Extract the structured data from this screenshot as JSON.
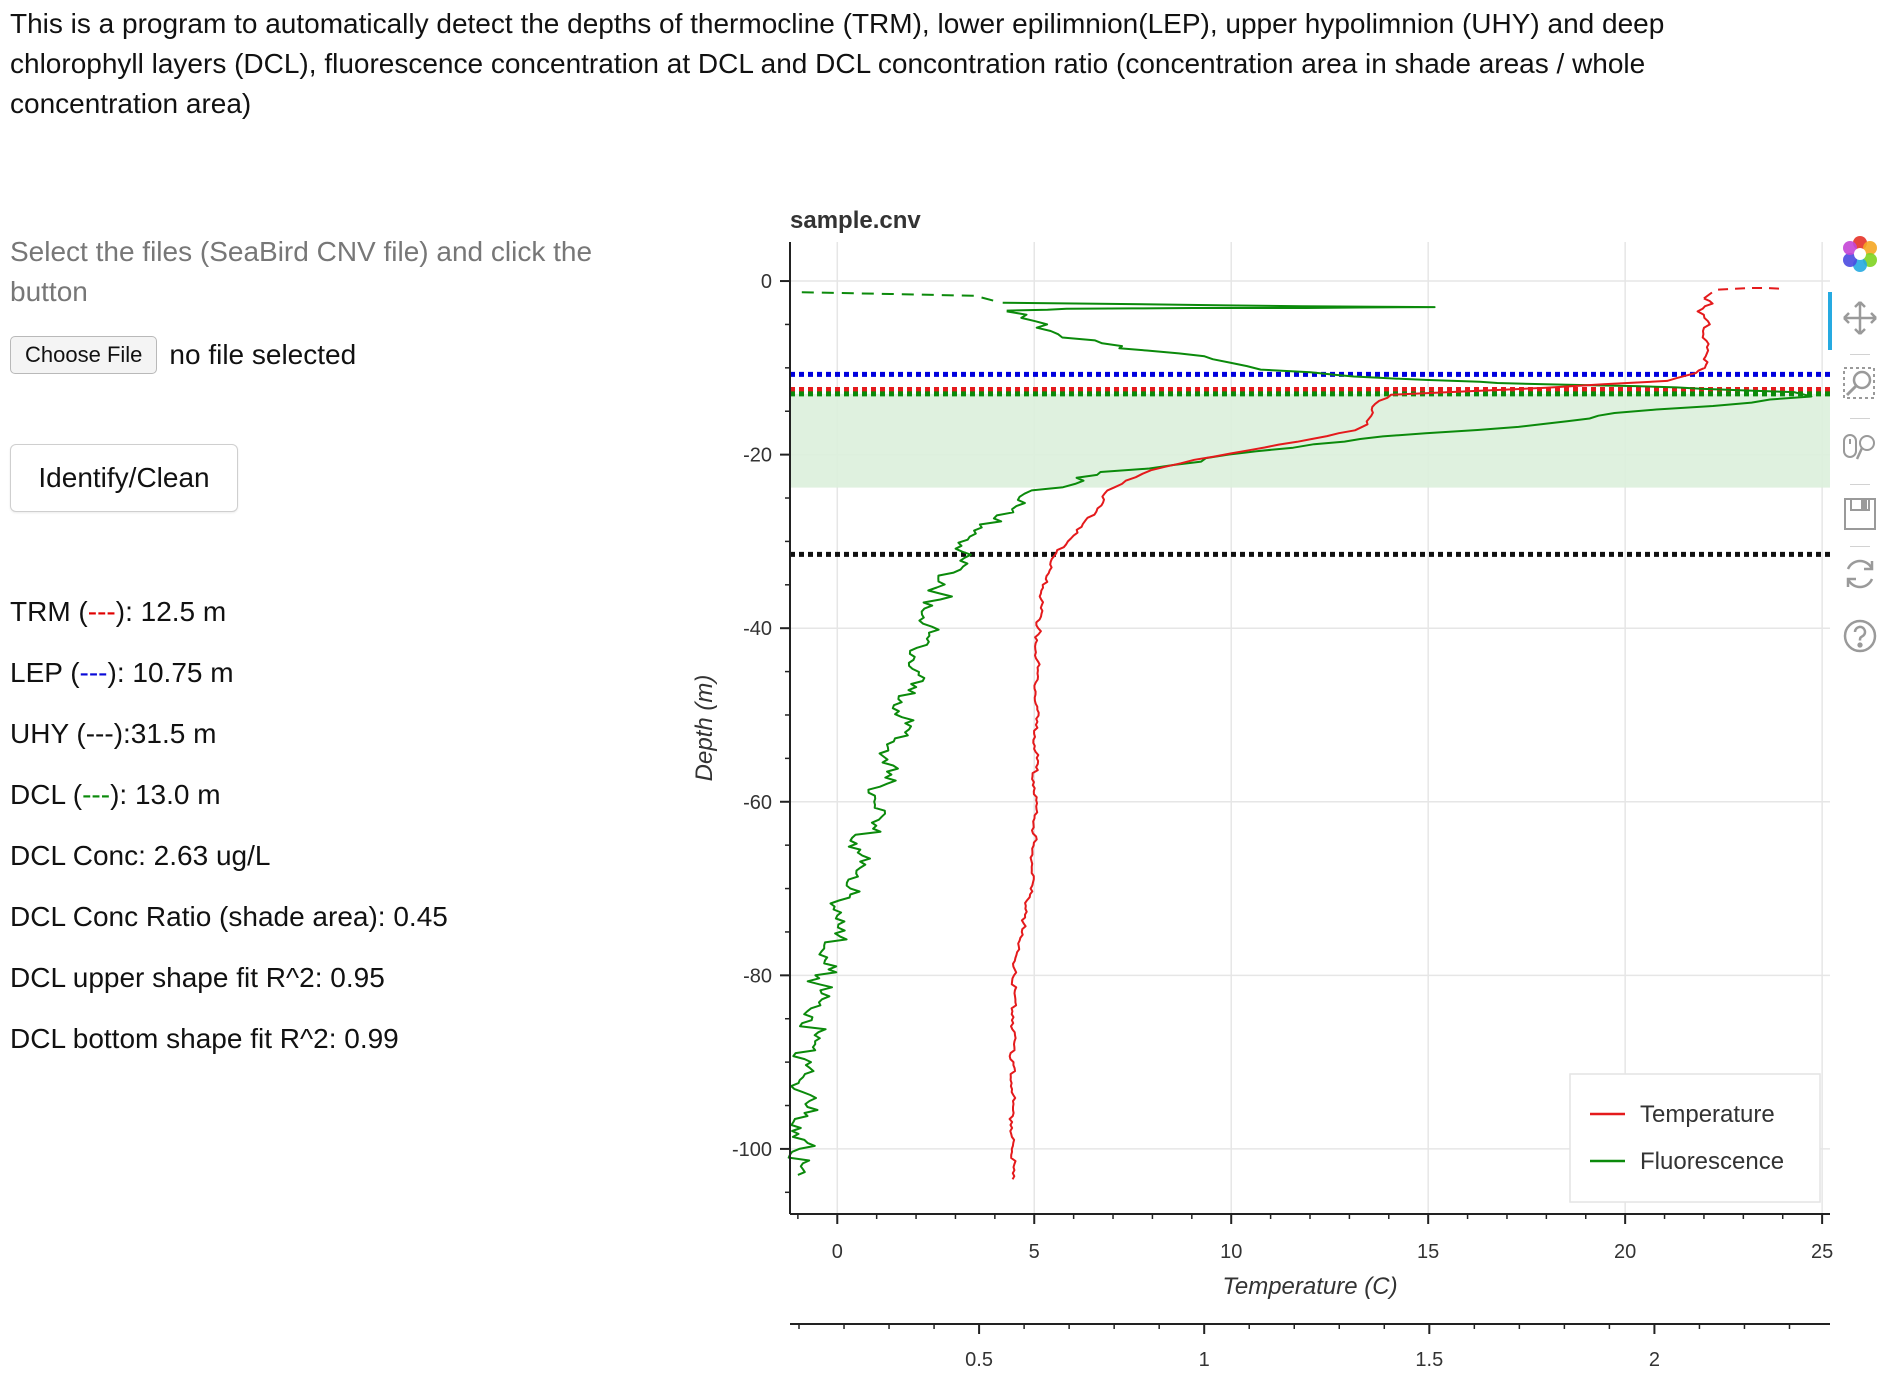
{
  "intro_text": "This is a program to automatically detect the depths of thermocline (TRM), lower epilimnion(LEP), upper hypolimnion (UHY) and deep chlorophyll layers (DCL), fluorescence concentration at DCL and DCL concontration ratio (concentration area in shade areas / whole concentration area)",
  "instructions": "Select the files (SeaBird CNV file) and click the button",
  "file_input": {
    "button_label": "Choose File",
    "status": "no file selected"
  },
  "identify_button": "Identify/Clean",
  "results": [
    {
      "prefix": "TRM (",
      "dash": "---",
      "dash_color": "#e00000",
      "suffix": "): 12.5 m"
    },
    {
      "prefix": "LEP (",
      "dash": "---",
      "dash_color": "#0a0ad8",
      "suffix": "): 10.75 m"
    },
    {
      "prefix": "UHY (",
      "dash": "---",
      "dash_color": "#111111",
      "suffix": "):31.5 m"
    },
    {
      "prefix": "DCL (",
      "dash": "---",
      "dash_color": "#0a8a0a",
      "suffix": "): 13.0 m"
    },
    {
      "prefix": "DCL Conc: 2.63 ug/L",
      "dash": "",
      "dash_color": "",
      "suffix": ""
    },
    {
      "prefix": "DCL Conc Ratio (shade area): 0.45",
      "dash": "",
      "dash_color": "",
      "suffix": ""
    },
    {
      "prefix": "DCL upper shape fit R^2: 0.95",
      "dash": "",
      "dash_color": "",
      "suffix": ""
    },
    {
      "prefix": "DCL bottom shape fit R^2: 0.99",
      "dash": "",
      "dash_color": "",
      "suffix": ""
    }
  ],
  "toolbar": {
    "tools": [
      "bokeh-logo-icon",
      "pan-icon",
      "box-zoom-icon",
      "wheel-zoom-icon",
      "save-icon",
      "reset-icon",
      "help-icon"
    ],
    "active": "pan-icon",
    "accent": "#26aae1"
  },
  "chart_data": {
    "type": "line",
    "title": "sample.cnv",
    "xlabel": "Temperature (C)",
    "ylabel": "Depth (m)",
    "xlim": [
      -1.2,
      25.2
    ],
    "ylim": [
      -107.5,
      4.5
    ],
    "x_ticks": [
      0,
      5,
      10,
      15,
      20,
      25
    ],
    "y_ticks": [
      0,
      -20,
      -40,
      -60,
      -80,
      -100
    ],
    "x2": {
      "xlim": [
        0.08,
        2.39
      ],
      "ticks": [
        0.5,
        1,
        1.5,
        2
      ]
    },
    "grid": true,
    "legend": {
      "position": "bottom-right",
      "entries": [
        "Temperature",
        "Fluorescence"
      ]
    },
    "colors": {
      "temperature": "#e41a1c",
      "fluorescence": "#0b8a0b",
      "lep": "#0000dd",
      "trm": "#e41a1c",
      "dcl": "#0b8a0b",
      "uhy": "#111111",
      "shade": "#dcefdc"
    },
    "shade_band": {
      "from": -13,
      "to": -23.8
    },
    "hlines": [
      {
        "name": "LEP",
        "y": -10.75,
        "color": "#0000dd"
      },
      {
        "name": "TRM",
        "y": -12.5,
        "color": "#e41a1c"
      },
      {
        "name": "DCL",
        "y": -13.0,
        "color": "#0b8a0b"
      },
      {
        "name": "UHY",
        "y": -31.5,
        "color": "#111111"
      }
    ],
    "series": [
      {
        "name": "Temperature",
        "dashed_segment": {
          "x": [
            22.0,
            22.3,
            23.2,
            23.6,
            24.0
          ],
          "y": [
            -2.0,
            -1.0,
            -0.8,
            -0.8,
            -0.9
          ]
        },
        "x": [
          22.0,
          22.15,
          21.9,
          22.1,
          22.0,
          22.1,
          22.05,
          22.0,
          21.8,
          21.0,
          18.0,
          14.0,
          13.6,
          13.4,
          13.2,
          12.0,
          10.5,
          9.0,
          8.0,
          7.3,
          6.8,
          6.6,
          6.3,
          5.8,
          5.5,
          5.3,
          5.2,
          5.1,
          5.05,
          5.0,
          4.95,
          4.9,
          4.8,
          4.6,
          4.5,
          4.45,
          4.45,
          4.45
        ],
        "y": [
          -2.0,
          -2.6,
          -3.5,
          -5.0,
          -6.5,
          -8.0,
          -9.0,
          -10.0,
          -10.6,
          -11.5,
          -12.3,
          -13.1,
          -14.5,
          -16.5,
          -17.2,
          -18.2,
          -19.5,
          -20.6,
          -21.8,
          -23.0,
          -24.5,
          -26.2,
          -28.0,
          -30.0,
          -32.0,
          -34.0,
          -36.0,
          -40.0,
          -48.0,
          -64.0,
          -67.5,
          -70.0,
          -73.0,
          -76.0,
          -80.0,
          -90.0,
          -100.0,
          -103.5
        ]
      },
      {
        "name": "Fluorescence",
        "dashed_segment": {
          "x": [
            -0.9,
            1.5,
            3.5,
            4.0
          ],
          "y": [
            -1.3,
            -1.5,
            -1.7,
            -2.3
          ]
        },
        "spike_segment": {
          "x": [
            4.2,
            8.0,
            12.0,
            15.0,
            12.0,
            9.0,
            6.0,
            4.3
          ],
          "y": [
            -2.5,
            -2.7,
            -2.9,
            -3.0,
            -3.1,
            -3.1,
            -3.2,
            -3.4
          ]
        },
        "x": [
          4.3,
          5.0,
          6.0,
          7.0,
          8.0,
          9.5,
          11.0,
          12.5,
          14.0,
          16.0,
          18.0,
          20.0,
          22.0,
          24.0,
          25.0,
          23.0,
          20.0,
          17.0,
          14.0,
          12.0,
          10.0,
          8.5,
          7.0,
          6.0,
          5.0,
          4.0,
          3.3,
          2.6,
          2.0,
          1.5,
          1.0,
          0.3,
          -0.4,
          -0.8,
          -0.9,
          -1.0
        ],
        "y": [
          -3.5,
          -5.0,
          -6.5,
          -7.5,
          -8.0,
          -9.0,
          -10.2,
          -10.8,
          -11.2,
          -11.6,
          -11.9,
          -12.1,
          -12.4,
          -12.8,
          -13.3,
          -14.0,
          -15.2,
          -16.8,
          -17.9,
          -18.8,
          -20.0,
          -21.2,
          -22.0,
          -23.0,
          -24.5,
          -27.0,
          -30.5,
          -36.0,
          -44.0,
          -52.0,
          -60.0,
          -70.0,
          -80.0,
          -90.0,
          -100.0,
          -103.0
        ]
      }
    ]
  }
}
